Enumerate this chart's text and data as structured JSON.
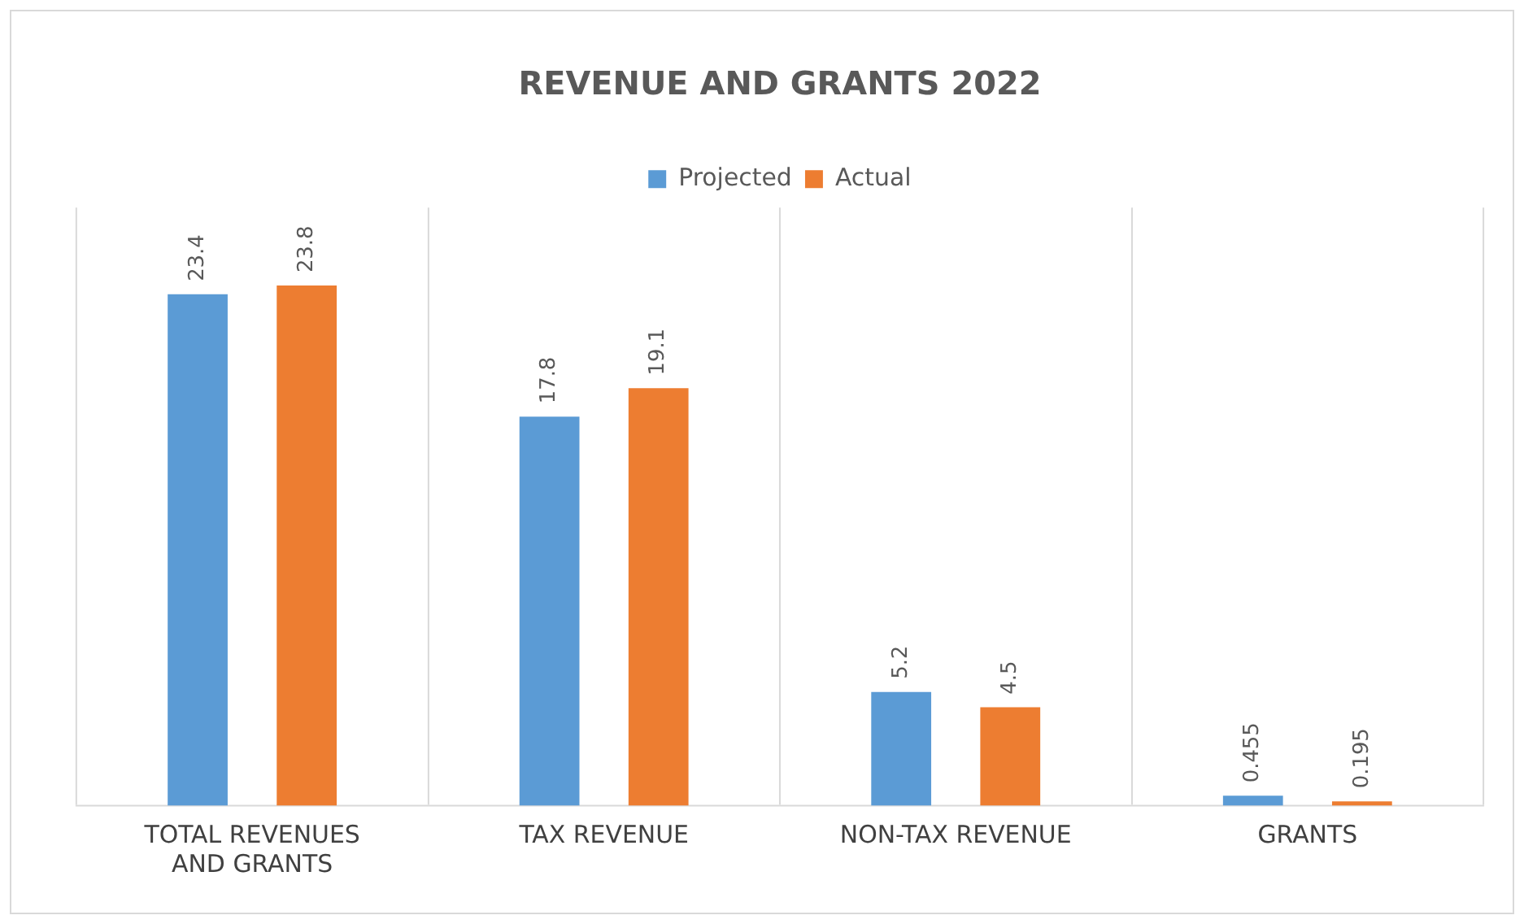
{
  "chart_data": {
    "type": "bar",
    "title": "REVENUE AND GRANTS 2022",
    "categories": [
      "TOTAL REVENUES AND GRANTS",
      "TAX REVENUE",
      "NON-TAX REVENUE",
      "GRANTS"
    ],
    "series": [
      {
        "name": "Projected",
        "color": "#5b9bd5",
        "values": [
          23.4,
          17.8,
          5.2,
          0.455
        ]
      },
      {
        "name": "Actual",
        "color": "#ed7d31",
        "values": [
          23.8,
          19.1,
          4.5,
          0.195
        ]
      }
    ],
    "data_labels": true,
    "legend": "top",
    "grid": "x"
  }
}
